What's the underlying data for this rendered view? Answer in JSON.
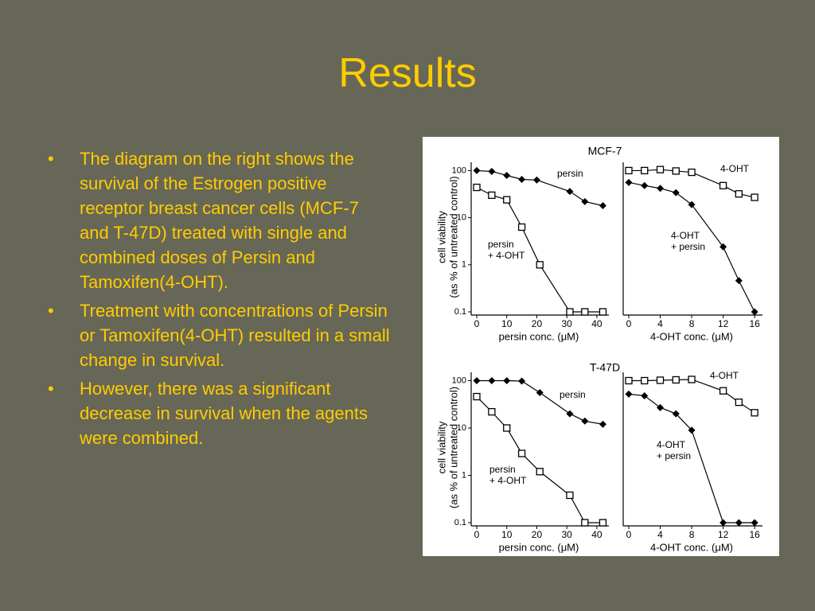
{
  "title": "Results",
  "bullets": [
    "The diagram on the right shows the survival of the Estrogen positive receptor breast cancer cells (MCF-7 and T-47D) treated with single and combined doses of Persin and Tamoxifen(4-OHT).",
    "Treatment with concentrations of Persin or Tamoxifen(4-OHT) resulted in a small change in survival.",
    "However, there was a significant decrease in survival when the agents were combined."
  ],
  "chart_data": [
    {
      "type": "line",
      "title": "MCF-7",
      "ylabel": [
        "cell viability",
        "(as % of untreated control)"
      ],
      "xlabel": "persin conc. (μM)",
      "log_y": true,
      "xlim": [
        0,
        44
      ],
      "ylim": [
        0.1,
        150
      ],
      "xticks": [
        0,
        10,
        20,
        30,
        40
      ],
      "yticks": [
        100,
        10,
        1,
        0.1
      ],
      "series": [
        {
          "name": [
            "persin"
          ],
          "marker": "diamond",
          "color": "#000000",
          "x": [
            0,
            5,
            10,
            15,
            20,
            31,
            36,
            42
          ],
          "values": [
            100,
            96,
            79,
            65,
            63,
            36,
            22,
            18
          ]
        },
        {
          "name": [
            "persin",
            "+ 4-OHT"
          ],
          "marker": "square",
          "color": "#000000",
          "x": [
            0,
            5,
            10,
            15,
            21,
            31,
            36,
            42
          ],
          "values": [
            44,
            30,
            24,
            6.3,
            1.0,
            0.1,
            0.1,
            0.1
          ]
        }
      ]
    },
    {
      "type": "line",
      "xlabel": "4-OHT conc. (μM)",
      "log_y": true,
      "xlim": [
        0,
        17
      ],
      "ylim": [
        0.1,
        150
      ],
      "xticks": [
        0,
        4,
        8,
        12,
        16
      ],
      "series": [
        {
          "name": [
            "4-OHT"
          ],
          "marker": "square",
          "color": "#000000",
          "x": [
            0,
            2,
            4,
            6,
            8,
            12,
            14,
            16
          ],
          "values": [
            100,
            100,
            105,
            98,
            92,
            48,
            32,
            27
          ]
        },
        {
          "name": [
            "4-OHT",
            "+ persin"
          ],
          "marker": "diamond",
          "color": "#000000",
          "x": [
            0,
            2,
            4,
            6,
            8,
            12,
            14,
            16
          ],
          "values": [
            56,
            48,
            42,
            34,
            19,
            2.4,
            0.46,
            0.1
          ]
        }
      ]
    },
    {
      "type": "line",
      "title": "T-47D",
      "ylabel": [
        "cell viability",
        "(as % of untreated control)"
      ],
      "xlabel": "persin conc. (μM)",
      "log_y": true,
      "xlim": [
        0,
        44
      ],
      "ylim": [
        0.1,
        150
      ],
      "xticks": [
        0,
        10,
        20,
        30,
        40
      ],
      "yticks": [
        100,
        10,
        1,
        0.1
      ],
      "series": [
        {
          "name": [
            "persin"
          ],
          "marker": "diamond",
          "color": "#000000",
          "x": [
            0,
            5,
            10,
            15,
            21,
            31,
            36,
            42
          ],
          "values": [
            100,
            100,
            100,
            98,
            56,
            20,
            14,
            12
          ]
        },
        {
          "name": [
            "persin",
            "+ 4-OHT"
          ],
          "marker": "square",
          "color": "#000000",
          "x": [
            0,
            5,
            10,
            15,
            21,
            31,
            36,
            42
          ],
          "values": [
            46,
            22,
            10,
            2.9,
            1.2,
            0.38,
            0.1,
            0.1
          ]
        }
      ]
    },
    {
      "type": "line",
      "xlabel": "4-OHT conc. (μM)",
      "log_y": true,
      "xlim": [
        0,
        17
      ],
      "ylim": [
        0.1,
        150
      ],
      "xticks": [
        0,
        4,
        8,
        12,
        16
      ],
      "series": [
        {
          "name": [
            "4-OHT"
          ],
          "marker": "square",
          "color": "#000000",
          "x": [
            0,
            2,
            4,
            6,
            8,
            12,
            14,
            16
          ],
          "values": [
            100,
            100,
            102,
            104,
            106,
            61,
            35,
            21
          ]
        },
        {
          "name": [
            "4-OHT",
            "+ persin"
          ],
          "marker": "diamond",
          "color": "#000000",
          "x": [
            0,
            2,
            4,
            6,
            8,
            12,
            14,
            16
          ],
          "values": [
            52,
            48,
            27,
            20,
            9,
            0.1,
            0.1,
            0.1
          ]
        }
      ]
    }
  ]
}
